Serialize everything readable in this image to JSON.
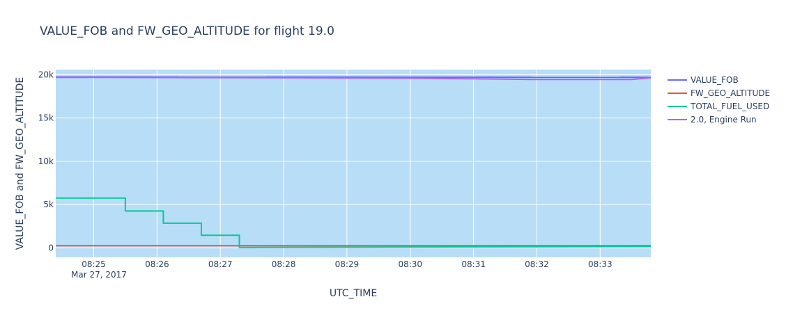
{
  "chart_data": {
    "type": "line",
    "title": "VALUE_FOB and FW_GEO_ALTITUDE for flight 19.0",
    "xlabel": "UTC_TIME",
    "ylabel": "VALUE_FOB and FW_GEO_ALTITUDE",
    "x_date_label": "Mar 27, 2017",
    "xlim": [
      "08:24:24",
      "08:33:48"
    ],
    "ylim": [
      -1100,
      20600
    ],
    "x_ticks": [
      "08:25",
      "08:26",
      "08:27",
      "08:28",
      "08:29",
      "08:30",
      "08:31",
      "08:32",
      "08:33"
    ],
    "y_ticks": [
      {
        "value": 0,
        "label": "0"
      },
      {
        "value": 5000,
        "label": "5k"
      },
      {
        "value": 10000,
        "label": "10k"
      },
      {
        "value": 15000,
        "label": "15k"
      },
      {
        "value": 20000,
        "label": "20k"
      }
    ],
    "grid": true,
    "legend_position": "right",
    "plot_bgcolor": "#b8ddf7",
    "series": [
      {
        "name": "VALUE_FOB",
        "color": "#636efa",
        "points": [
          [
            "08:24:24",
            19750
          ],
          [
            "08:33:48",
            19700
          ]
        ]
      },
      {
        "name": "FW_GEO_ALTITUDE",
        "color": "#ef553b",
        "points": [
          [
            "08:24:24",
            250
          ],
          [
            "08:33:48",
            250
          ]
        ]
      },
      {
        "name": "TOTAL_FUEL_USED",
        "color": "#00cc96",
        "points": [
          [
            "08:24:24",
            5750
          ],
          [
            "08:25:30",
            5750
          ],
          [
            "08:25:30",
            4250
          ],
          [
            "08:26:06",
            4250
          ],
          [
            "08:26:06",
            2850
          ],
          [
            "08:26:42",
            2850
          ],
          [
            "08:26:42",
            1450
          ],
          [
            "08:27:18",
            1450
          ],
          [
            "08:27:18",
            50
          ],
          [
            "08:33:48",
            150
          ]
        ]
      },
      {
        "name": "2.0, Engine Run",
        "color": "#ab63fa",
        "points": [
          [
            "08:24:24",
            19700
          ],
          [
            "08:28:00",
            19650
          ],
          [
            "08:30:00",
            19600
          ],
          [
            "08:31:30",
            19500
          ],
          [
            "08:32:00",
            19450
          ],
          [
            "08:33:30",
            19450
          ],
          [
            "08:33:48",
            19650
          ]
        ]
      }
    ]
  }
}
